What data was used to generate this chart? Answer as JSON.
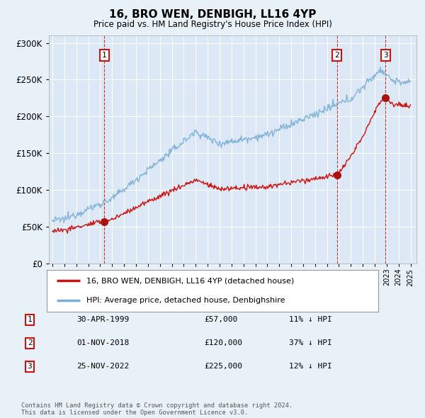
{
  "title": "16, BRO WEN, DENBIGH, LL16 4YP",
  "subtitle": "Price paid vs. HM Land Registry's House Price Index (HPI)",
  "background_color": "#e8f0f8",
  "plot_bg_color": "#dce8f5",
  "sale_dates_num": [
    1999.33,
    2018.83,
    2022.9
  ],
  "sale_prices": [
    57000,
    120000,
    225000
  ],
  "sale_labels": [
    "1",
    "2",
    "3"
  ],
  "legend_line1": "16, BRO WEN, DENBIGH, LL16 4YP (detached house)",
  "legend_line2": "HPI: Average price, detached house, Denbighshire",
  "table_rows": [
    [
      "1",
      "30-APR-1999",
      "£57,000",
      "11% ↓ HPI"
    ],
    [
      "2",
      "01-NOV-2018",
      "£120,000",
      "37% ↓ HPI"
    ],
    [
      "3",
      "25-NOV-2022",
      "£225,000",
      "12% ↓ HPI"
    ]
  ],
  "footer": "Contains HM Land Registry data © Crown copyright and database right 2024.\nThis data is licensed under the Open Government Licence v3.0.",
  "ylim": [
    0,
    310000
  ],
  "yticks": [
    0,
    50000,
    100000,
    150000,
    200000,
    250000,
    300000
  ],
  "ytick_labels": [
    "£0",
    "£50K",
    "£100K",
    "£150K",
    "£200K",
    "£250K",
    "£300K"
  ],
  "hpi_color": "#7aaed4",
  "sale_line_color": "#cc1111",
  "vline_color": "#cc1111",
  "marker_color": "#aa1111",
  "xlim_start": 1994.7,
  "xlim_end": 2025.5
}
